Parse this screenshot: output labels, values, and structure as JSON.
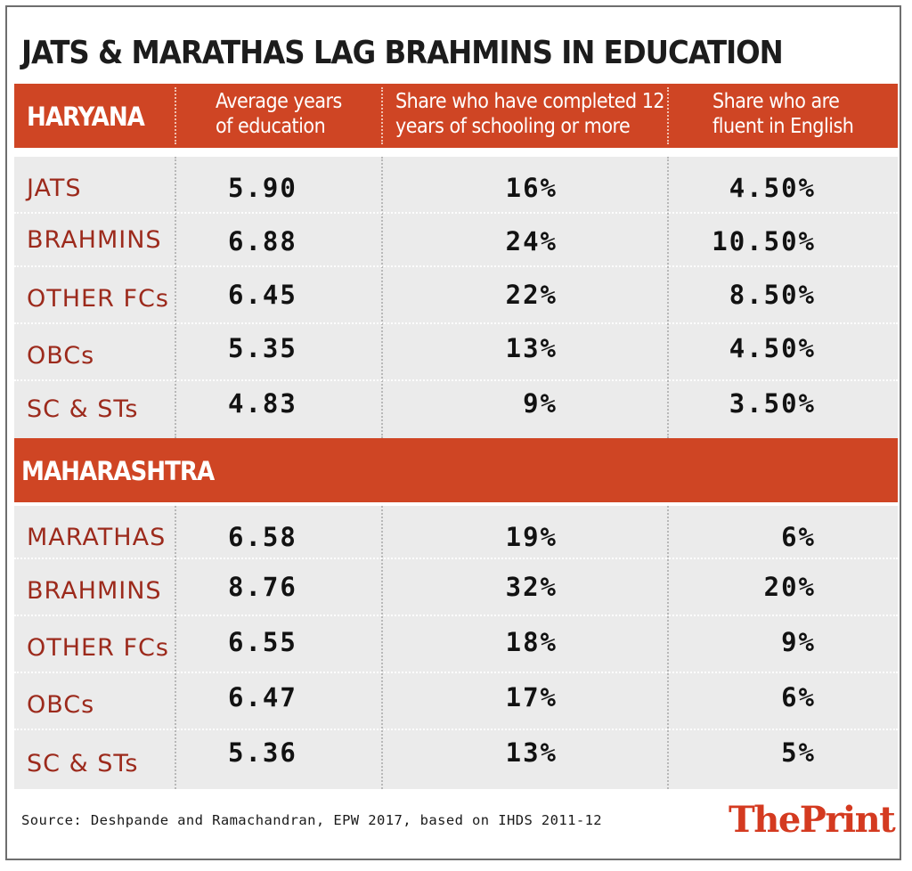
{
  "title": "JATS & MARATHAS LAG BRAHMINS IN EDUCATION",
  "columns": [
    "Average years of education",
    "Share who have completed 12 years of schooling or more",
    "Share who are fluent in English"
  ],
  "column_lines": [
    [
      "Average years",
      "of education"
    ],
    [
      "Share who have completed 12",
      "years of schooling or more"
    ],
    [
      "Share who are",
      "fluent in English"
    ]
  ],
  "source": "Source: Deshpande and Ramachandran, EPW 2017, based on IHDS 2011-12",
  "logo": {
    "the": "The",
    "print": "Print"
  },
  "colors": {
    "band": "#cf4524",
    "label": "#9c2a1c",
    "row_bg": "#ebebeb"
  },
  "chart_data": {
    "type": "table",
    "title": "JATS & MARATHAS LAG BRAHMINS IN EDUCATION",
    "columns": [
      "Average years of education",
      "Share who have completed 12 years of schooling or more",
      "Share who are fluent in English"
    ],
    "sections": [
      {
        "name": "HARYANA",
        "rows": [
          {
            "group": "JATS",
            "values": [
              "5.90",
              "16%",
              "4.50%"
            ]
          },
          {
            "group": "BRAHMINS",
            "values": [
              "6.88",
              "24%",
              "10.50%"
            ]
          },
          {
            "group": "OTHER FCs",
            "values": [
              "6.45",
              "22%",
              "8.50%"
            ]
          },
          {
            "group": "OBCs",
            "values": [
              "5.35",
              "13%",
              "4.50%"
            ]
          },
          {
            "group": "SC & STs",
            "values": [
              "4.83",
              "9%",
              "3.50%"
            ]
          }
        ]
      },
      {
        "name": "MAHARASHTRA",
        "rows": [
          {
            "group": "MARATHAS",
            "values": [
              "6.58",
              "19%",
              "6%"
            ]
          },
          {
            "group": "BRAHMINS",
            "values": [
              "8.76",
              "32%",
              "20%"
            ]
          },
          {
            "group": "OTHER FCs",
            "values": [
              "6.55",
              "18%",
              "9%"
            ]
          },
          {
            "group": "OBCs",
            "values": [
              "6.47",
              "17%",
              "6%"
            ]
          },
          {
            "group": "SC & STs",
            "values": [
              "5.36",
              "13%",
              "5%"
            ]
          }
        ]
      }
    ]
  }
}
